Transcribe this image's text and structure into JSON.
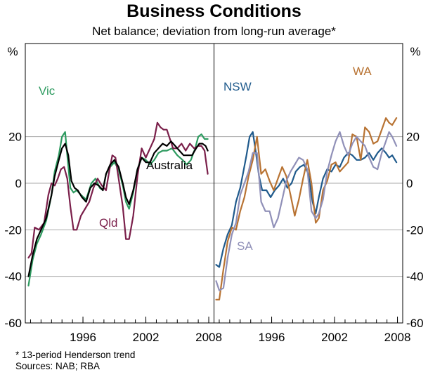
{
  "chart_data": {
    "type": "line",
    "title": "Business Conditions",
    "subtitle": "Net balance; deviation from long-run average*",
    "ylabel_left": "%",
    "ylabel_right": "%",
    "ylim": [
      -60,
      60
    ],
    "yticks": [
      -60,
      -40,
      -20,
      0,
      20
    ],
    "xlim": [
      1990.5,
      2008.5
    ],
    "xticks": [
      1996,
      2002,
      2008
    ],
    "panels": [
      {
        "series": [
          {
            "name": "Vic",
            "color": "#2e9b60",
            "x": [
              1990.8,
              1991.2,
              1991.6,
              1992.0,
              1992.5,
              1993.0,
              1993.3,
              1993.7,
              1994.0,
              1994.3,
              1994.5,
              1994.8,
              1995.1,
              1995.4,
              1995.8,
              1996.3,
              1996.8,
              1997.2,
              1997.6,
              1997.9,
              1998.2,
              1998.6,
              1999.0,
              1999.4,
              1999.8,
              2000.1,
              2000.4,
              2000.8,
              2001.2,
              2001.6,
              2002.0,
              2002.4,
              2002.8,
              2003.2,
              2003.6,
              2004.0,
              2004.5,
              2005.0,
              2005.5,
              2005.9,
              2006.3,
              2006.7,
              2007.0,
              2007.3,
              2007.6,
              2007.9
            ],
            "y": [
              -44,
              -33,
              -26,
              -22,
              -16,
              -5,
              5,
              12,
              20,
              22,
              12,
              -2,
              -4,
              -3,
              -5,
              -7,
              0,
              2,
              -2,
              -3,
              4,
              7,
              9,
              6,
              -1,
              -8,
              -11,
              -4,
              6,
              11,
              10,
              8,
              10,
              13,
              14,
              14,
              15,
              12,
              10,
              8,
              10,
              15,
              20,
              21,
              19,
              19
            ]
          },
          {
            "name": "Qld",
            "color": "#7a1f4a",
            "x": [
              1990.8,
              1991.1,
              1991.4,
              1991.8,
              1992.3,
              1992.7,
              1993.0,
              1993.3,
              1993.6,
              1993.9,
              1994.2,
              1994.5,
              1994.8,
              1995.1,
              1995.4,
              1995.8,
              1996.2,
              1996.6,
              1997.0,
              1997.4,
              1997.8,
              1998.2,
              1998.5,
              1998.8,
              1999.1,
              1999.4,
              1999.8,
              2000.1,
              2000.4,
              2000.8,
              2001.2,
              2001.6,
              2002.0,
              2002.4,
              2002.8,
              2003.1,
              2003.4,
              2003.7,
              2004.0,
              2004.3,
              2004.6,
              2005.0,
              2005.4,
              2005.8,
              2006.2,
              2006.6,
              2007.0,
              2007.3,
              2007.6,
              2007.9
            ],
            "y": [
              -32,
              -30,
              -19,
              -20,
              -17,
              -5,
              0,
              -1,
              2,
              6,
              7,
              2,
              -10,
              -20,
              -20,
              -14,
              -11,
              -8,
              -2,
              2,
              -1,
              -3,
              5,
              12,
              11,
              2,
              -10,
              -24,
              -24,
              -14,
              3,
              15,
              11,
              15,
              19,
              26,
              24,
              23,
              23,
              19,
              15,
              15,
              17,
              14,
              17,
              15,
              16,
              16,
              14,
              4
            ]
          },
          {
            "name": "Australia",
            "color": "#000000",
            "x": [
              1990.8,
              1991.2,
              1991.6,
              1992.0,
              1992.5,
              1993.0,
              1993.3,
              1993.7,
              1994.0,
              1994.3,
              1994.6,
              1994.9,
              1995.2,
              1995.5,
              1995.9,
              1996.3,
              1996.7,
              1997.1,
              1997.5,
              1997.9,
              1998.2,
              1998.6,
              1999.0,
              1999.4,
              1999.8,
              2000.1,
              2000.4,
              2000.8,
              2001.2,
              2001.6,
              2002.0,
              2002.4,
              2002.8,
              2003.2,
              2003.6,
              2004.0,
              2004.4,
              2004.8,
              2005.2,
              2005.6,
              2006.0,
              2006.4,
              2006.8,
              2007.1,
              2007.4,
              2007.7,
              2007.9
            ],
            "y": [
              -40,
              -31,
              -24,
              -20,
              -15,
              -5,
              3,
              10,
              15,
              17,
              12,
              1,
              -2,
              -3,
              -6,
              -8,
              -2,
              0,
              -1,
              -3,
              4,
              8,
              10,
              7,
              0,
              -6,
              -9,
              -3,
              6,
              11,
              9,
              9,
              13,
              15,
              17,
              16,
              18,
              16,
              14,
              12,
              12,
              12,
              15,
              17,
              17,
              16,
              14
            ]
          }
        ]
      },
      {
        "series": [
          {
            "name": "NSW",
            "color": "#1f5a8c",
            "x": [
              1990.7,
              1991.0,
              1991.4,
              1991.8,
              1992.2,
              1992.6,
              1993.0,
              1993.3,
              1993.6,
              1993.9,
              1994.2,
              1994.5,
              1994.8,
              1995.1,
              1995.5,
              1995.9,
              1996.3,
              1996.7,
              1997.1,
              1997.5,
              1997.9,
              1998.3,
              1998.7,
              1999.1,
              1999.5,
              1999.9,
              2000.2,
              2000.5,
              2000.9,
              2001.3,
              2001.7,
              2002.1,
              2002.5,
              2002.9,
              2003.3,
              2003.7,
              2004.1,
              2004.5,
              2004.9,
              2005.3,
              2005.7,
              2006.1,
              2006.5,
              2006.9,
              2007.2,
              2007.5,
              2007.9
            ],
            "y": [
              -35,
              -36,
              -28,
              -22,
              -18,
              -8,
              -2,
              5,
              12,
              20,
              22,
              13,
              3,
              -3,
              -3,
              -6,
              -3,
              -1,
              2,
              -2,
              0,
              5,
              7,
              8,
              4,
              -8,
              -13,
              -6,
              2,
              6,
              5,
              8,
              7,
              11,
              13,
              12,
              10,
              10,
              11,
              13,
              10,
              13,
              15,
              13,
              11,
              12,
              9
            ]
          },
          {
            "name": "WA",
            "color": "#b87333",
            "x": [
              1990.7,
              1991.0,
              1991.4,
              1991.8,
              1992.2,
              1992.6,
              1993.0,
              1993.4,
              1993.8,
              1994.2,
              1994.6,
              1995.0,
              1995.4,
              1995.8,
              1996.2,
              1996.6,
              1997.0,
              1997.4,
              1997.8,
              1998.2,
              1998.6,
              1999.0,
              1999.4,
              1999.8,
              2000.2,
              2000.5,
              2000.9,
              2001.3,
              2001.7,
              2002.1,
              2002.5,
              2002.9,
              2003.3,
              2003.7,
              2004.1,
              2004.5,
              2004.9,
              2005.3,
              2005.7,
              2006.1,
              2006.5,
              2006.9,
              2007.2,
              2007.5,
              2007.9
            ],
            "y": [
              -50,
              -50,
              -37,
              -25,
              -19,
              -20,
              -12,
              -6,
              3,
              10,
              20,
              4,
              6,
              1,
              -3,
              2,
              7,
              3,
              -5,
              -14,
              -7,
              2,
              10,
              0,
              -17,
              -15,
              -3,
              1,
              8,
              9,
              5,
              7,
              9,
              21,
              20,
              10,
              24,
              22,
              17,
              18,
              23,
              28,
              26,
              25,
              28
            ]
          },
          {
            "name": "SA",
            "color": "#9090b8",
            "x": [
              1990.7,
              1991.0,
              1991.4,
              1991.8,
              1992.2,
              1992.6,
              1993.0,
              1993.4,
              1993.8,
              1994.2,
              1994.6,
              1995.0,
              1995.4,
              1995.8,
              1996.2,
              1996.6,
              1997.0,
              1997.4,
              1997.8,
              1998.2,
              1998.6,
              1999.0,
              1999.4,
              1999.8,
              2000.2,
              2000.5,
              2000.9,
              2001.3,
              2001.7,
              2002.1,
              2002.5,
              2002.9,
              2003.3,
              2003.7,
              2004.1,
              2004.5,
              2004.9,
              2005.3,
              2005.7,
              2006.1,
              2006.5,
              2006.9,
              2007.2,
              2007.5,
              2007.9
            ],
            "y": [
              -42,
              -46,
              -45,
              -32,
              -22,
              -17,
              -5,
              0,
              5,
              13,
              13,
              -8,
              -12,
              -12,
              -19,
              -15,
              -7,
              1,
              5,
              8,
              11,
              10,
              6,
              -12,
              -15,
              -13,
              -7,
              5,
              12,
              18,
              22,
              16,
              12,
              17,
              20,
              18,
              16,
              11,
              7,
              6,
              13,
              18,
              22,
              20,
              16
            ]
          }
        ]
      }
    ],
    "labels": {
      "Vic": "Vic",
      "Qld": "Qld",
      "Australia": "Australia",
      "NSW": "NSW",
      "WA": "WA",
      "SA": "SA"
    }
  },
  "footnotes": {
    "note": "*    13-period Henderson trend",
    "sources": "Sources: NAB; RBA"
  }
}
